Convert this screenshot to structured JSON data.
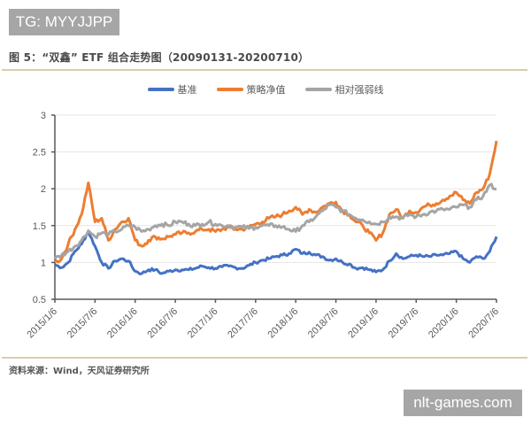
{
  "watermarks": {
    "top": "TG: MYYJJPP",
    "bottom": "nlt-games.com"
  },
  "figure": {
    "title": "图 5：“双鑫” ETF 组合走势图（20090131-20200710）",
    "source": "资料来源：Wind，天风证券研究所"
  },
  "colors": {
    "benchmark": "#4472c4",
    "strategy": "#ed7d31",
    "relative": "#a5a5a5",
    "rule": "#e3c9ad",
    "grid": "#e6e6e6",
    "axis": "#595959"
  },
  "chart_data": {
    "type": "line",
    "title": "“双鑫” ETF 组合走势图（20090131-20200710）",
    "xlabel": "",
    "ylabel": "",
    "ylim": [
      0.5,
      3
    ],
    "yticks": [
      0.5,
      1,
      1.5,
      2,
      2.5,
      3
    ],
    "ytick_labels": [
      "0.5",
      "1",
      "1.5",
      "2",
      "2.5",
      "3"
    ],
    "grid": true,
    "legend_position": "top",
    "x_tick_labels": [
      "2015/1/6",
      "2015/7/6",
      "2016/1/6",
      "2016/7/6",
      "2017/1/6",
      "2017/7/6",
      "2018/1/6",
      "2018/7/6",
      "2019/1/6",
      "2019/7/6",
      "2020/1/6",
      "2020/7/6"
    ],
    "x": [
      "2015/1",
      "2015/2",
      "2015/3",
      "2015/4",
      "2015/5",
      "2015/6",
      "2015/7",
      "2015/8",
      "2015/9",
      "2015/10",
      "2015/11",
      "2015/12",
      "2016/1",
      "2016/2",
      "2016/3",
      "2016/4",
      "2016/5",
      "2016/6",
      "2016/7",
      "2016/8",
      "2016/9",
      "2016/10",
      "2016/11",
      "2016/12",
      "2017/1",
      "2017/2",
      "2017/3",
      "2017/4",
      "2017/5",
      "2017/6",
      "2017/7",
      "2017/8",
      "2017/9",
      "2017/10",
      "2017/11",
      "2017/12",
      "2018/1",
      "2018/2",
      "2018/3",
      "2018/4",
      "2018/5",
      "2018/6",
      "2018/7",
      "2018/8",
      "2018/9",
      "2018/10",
      "2018/11",
      "2018/12",
      "2019/1",
      "2019/2",
      "2019/3",
      "2019/4",
      "2019/5",
      "2019/6",
      "2019/7",
      "2019/8",
      "2019/9",
      "2019/10",
      "2019/11",
      "2019/12",
      "2020/1",
      "2020/2",
      "2020/3",
      "2020/4",
      "2020/5",
      "2020/6",
      "2020/7"
    ],
    "series": [
      {
        "name": "基准",
        "color": "#4472c4",
        "values": [
          0.97,
          0.93,
          1.0,
          1.15,
          1.25,
          1.42,
          1.22,
          1.0,
          0.92,
          1.02,
          1.05,
          1.02,
          0.88,
          0.85,
          0.9,
          0.9,
          0.85,
          0.88,
          0.9,
          0.9,
          0.9,
          0.92,
          0.95,
          0.93,
          0.92,
          0.94,
          0.95,
          0.93,
          0.92,
          0.96,
          1.0,
          1.03,
          1.05,
          1.08,
          1.1,
          1.12,
          1.18,
          1.12,
          1.14,
          1.1,
          1.08,
          1.03,
          1.05,
          1.0,
          0.98,
          0.92,
          0.93,
          0.9,
          0.87,
          0.9,
          1.02,
          1.12,
          1.05,
          1.08,
          1.1,
          1.08,
          1.08,
          1.1,
          1.1,
          1.12,
          1.15,
          1.05,
          1.0,
          1.08,
          1.05,
          1.15,
          1.35
        ]
      },
      {
        "name": "策略净值",
        "color": "#ed7d31",
        "values": [
          1.0,
          1.05,
          1.25,
          1.45,
          1.65,
          2.08,
          1.55,
          1.6,
          1.3,
          1.45,
          1.55,
          1.6,
          1.3,
          1.22,
          1.3,
          1.35,
          1.32,
          1.35,
          1.38,
          1.4,
          1.4,
          1.42,
          1.45,
          1.45,
          1.42,
          1.45,
          1.48,
          1.45,
          1.45,
          1.48,
          1.52,
          1.55,
          1.6,
          1.62,
          1.65,
          1.7,
          1.75,
          1.65,
          1.72,
          1.68,
          1.75,
          1.8,
          1.82,
          1.7,
          1.65,
          1.55,
          1.5,
          1.4,
          1.3,
          1.4,
          1.65,
          1.72,
          1.6,
          1.7,
          1.68,
          1.75,
          1.78,
          1.8,
          1.85,
          1.9,
          1.95,
          1.85,
          1.8,
          1.95,
          2.0,
          2.2,
          2.65
        ]
      },
      {
        "name": "相对强弱线",
        "color": "#a5a5a5",
        "values": [
          1.05,
          1.1,
          1.15,
          1.22,
          1.3,
          1.43,
          1.35,
          1.4,
          1.38,
          1.42,
          1.45,
          1.5,
          1.48,
          1.42,
          1.45,
          1.5,
          1.52,
          1.5,
          1.55,
          1.55,
          1.52,
          1.5,
          1.52,
          1.55,
          1.52,
          1.5,
          1.5,
          1.48,
          1.48,
          1.46,
          1.48,
          1.5,
          1.5,
          1.5,
          1.48,
          1.45,
          1.42,
          1.5,
          1.55,
          1.62,
          1.7,
          1.78,
          1.75,
          1.7,
          1.65,
          1.6,
          1.58,
          1.55,
          1.52,
          1.55,
          1.62,
          1.62,
          1.6,
          1.65,
          1.62,
          1.65,
          1.68,
          1.7,
          1.72,
          1.72,
          1.75,
          1.78,
          1.75,
          1.85,
          1.9,
          2.05,
          2.0
        ]
      }
    ]
  }
}
